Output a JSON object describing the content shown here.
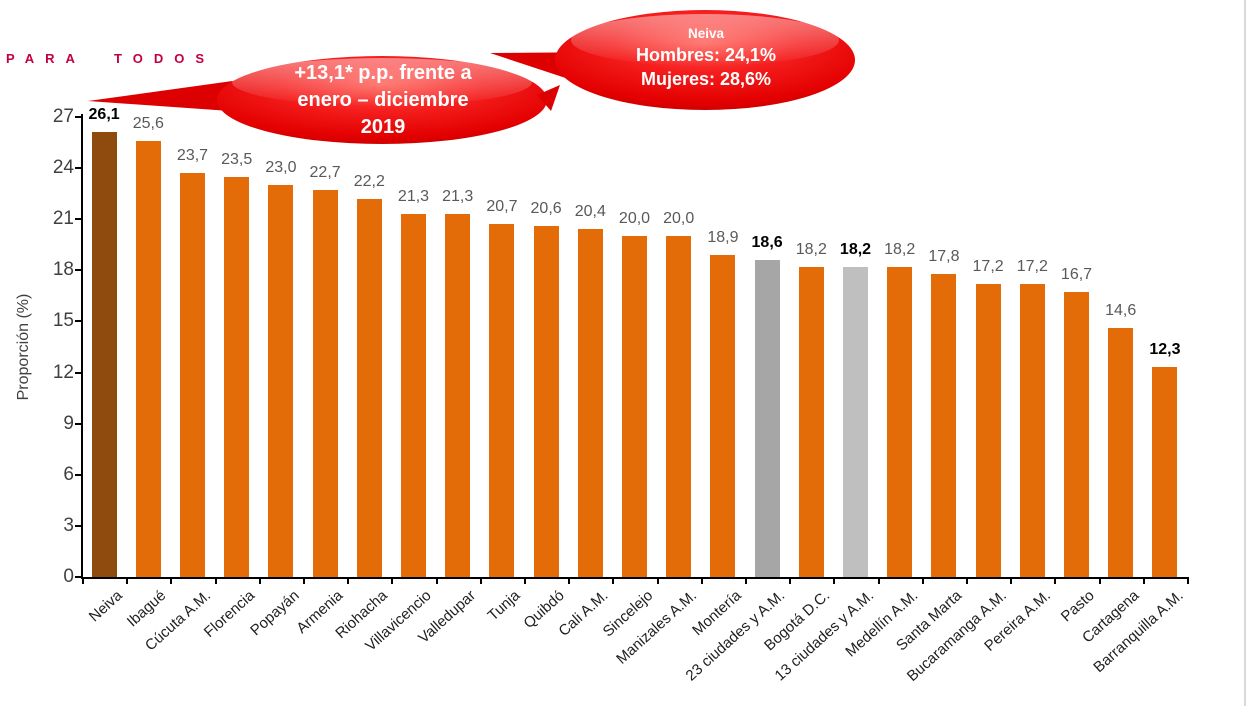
{
  "brand": {
    "tagline": "PARA TODOS",
    "color": "#C2003F"
  },
  "callouts": {
    "change": {
      "line1": "+13,1* p.p. frente a",
      "line2": "enero – diciembre",
      "line3": "2019"
    },
    "neiva": {
      "title": "Neiva",
      "line1": "Hombres: 24,1%",
      "line2": "Mujeres: 28,6%"
    },
    "bubble_color": "#E60000"
  },
  "chart_data": {
    "type": "bar",
    "title": "",
    "xlabel": "",
    "ylabel": "Proporción (%)",
    "ylim": [
      0,
      27
    ],
    "ytick_step": 3,
    "grid": false,
    "legend": null,
    "categories": [
      "Neiva",
      "Ibagué",
      "Cúcuta A.M.",
      "Florencia",
      "Popayán",
      "Armenia",
      "Riohacha",
      "Villavicencio",
      "Valledupar",
      "Tunja",
      "Quibdó",
      "Cali A.M.",
      "Sincelejo",
      "Manizales A.M.",
      "Montería",
      "23 ciudades y A.M.",
      "Bogotá D.C.",
      "13 ciudades y A.M.",
      "Medellín A.M.",
      "Santa Marta",
      "Bucaramanga A.M.",
      "Pereira A.M.",
      "Pasto",
      "Cartagena",
      "Barranquilla A.M."
    ],
    "values": [
      26.1,
      25.6,
      23.7,
      23.5,
      23.0,
      22.7,
      22.2,
      21.3,
      21.3,
      20.7,
      20.6,
      20.4,
      20.0,
      20.0,
      18.9,
      18.6,
      18.2,
      18.2,
      18.2,
      17.8,
      17.2,
      17.2,
      16.7,
      14.6,
      12.3
    ],
    "labels": [
      "26,1",
      "25,6",
      "23,7",
      "23,5",
      "23,0",
      "22,7",
      "22,2",
      "21,3",
      "21,3",
      "20,7",
      "20,6",
      "20,4",
      "20,0",
      "20,0",
      "18,9",
      "18,6",
      "18,2",
      "18,2",
      "18,2",
      "17,8",
      "17,2",
      "17,2",
      "16,7",
      "14,6",
      "12,3"
    ],
    "bold_value_indices": [
      0,
      15,
      17,
      24
    ],
    "bar_color_default": "#E36C09",
    "bar_color_overrides": {
      "0": "#8F4A0E",
      "15": "#A6A6A6",
      "17": "#BFBFBF"
    },
    "value_label_color": "#595959",
    "axis_color": "#000000"
  }
}
